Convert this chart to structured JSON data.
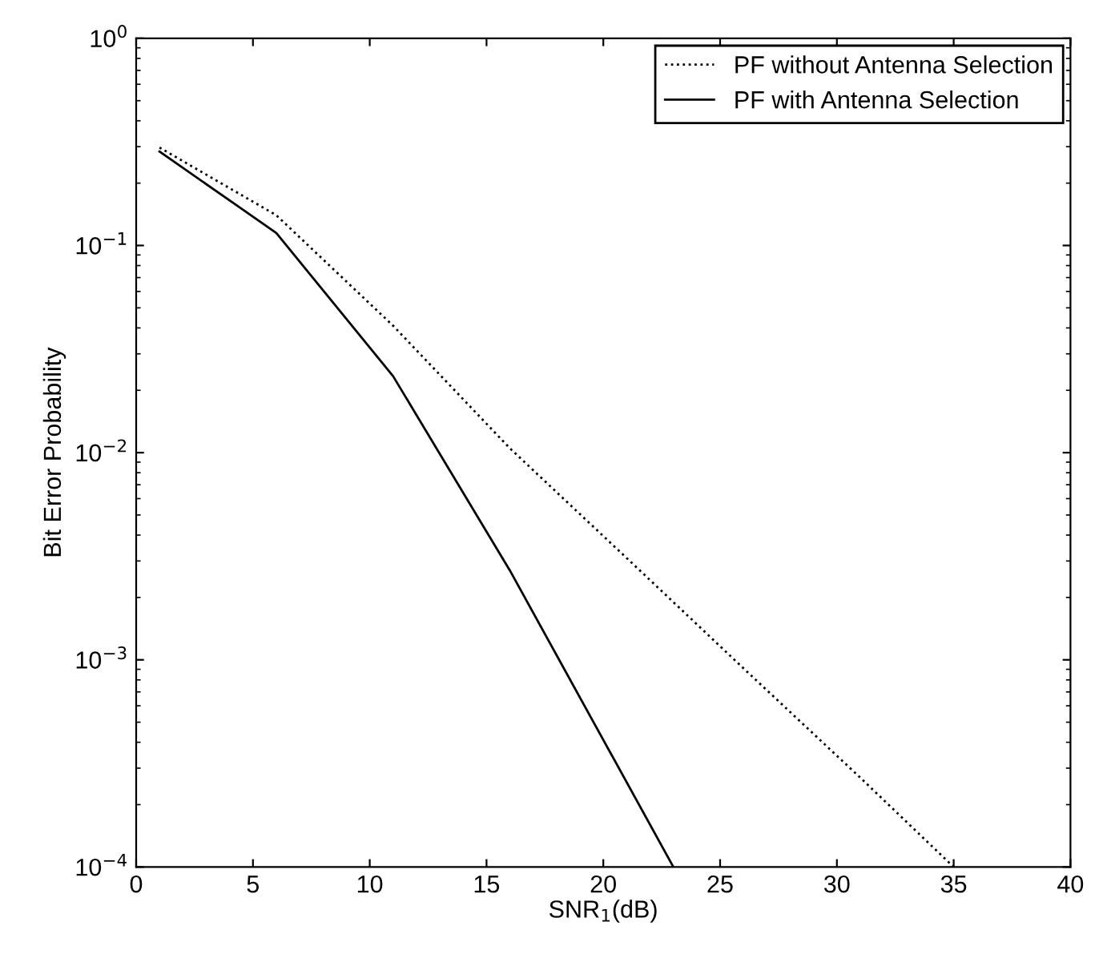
{
  "chart_data": {
    "type": "line",
    "xlabel": "SNR$_{1}$(dB)",
    "ylabel": "Bit Error Probability",
    "series": [
      {
        "name": "PF without Antenna Selection",
        "color": "#000000",
        "line_style": "dotted",
        "x": [
          1,
          6,
          11,
          16,
          21,
          26,
          31,
          35
        ],
        "values": [
          0.297,
          0.14,
          0.041,
          0.0105,
          0.0031,
          0.00091,
          0.00027,
          0.0001
        ]
      },
      {
        "name": "PF with Antenna Selection",
        "color": "#000000",
        "line_style": "solid",
        "x": [
          1,
          6,
          11,
          16,
          23
        ],
        "values": [
          0.284,
          0.115,
          0.0234,
          0.0027,
          0.0001
        ]
      }
    ],
    "log": "y",
    "xlim": [
      0,
      40
    ],
    "xticks": [
      0,
      5,
      10,
      15,
      20,
      25,
      30,
      35,
      40
    ],
    "ylim": [
      0.0001,
      1
    ],
    "yticks": [
      {
        "value": 0.0001,
        "label": "10$^{−4}$"
      },
      {
        "value": 0.001,
        "label": "10$^{−3}$"
      },
      {
        "value": 0.01,
        "label": "10$^{−2}$"
      },
      {
        "value": 0.1,
        "label": "10$^{−1}$"
      },
      {
        "value": 1,
        "label": "10$^{0}$"
      }
    ],
    "grid": false,
    "legend": "top right",
    "marker": "none"
  }
}
